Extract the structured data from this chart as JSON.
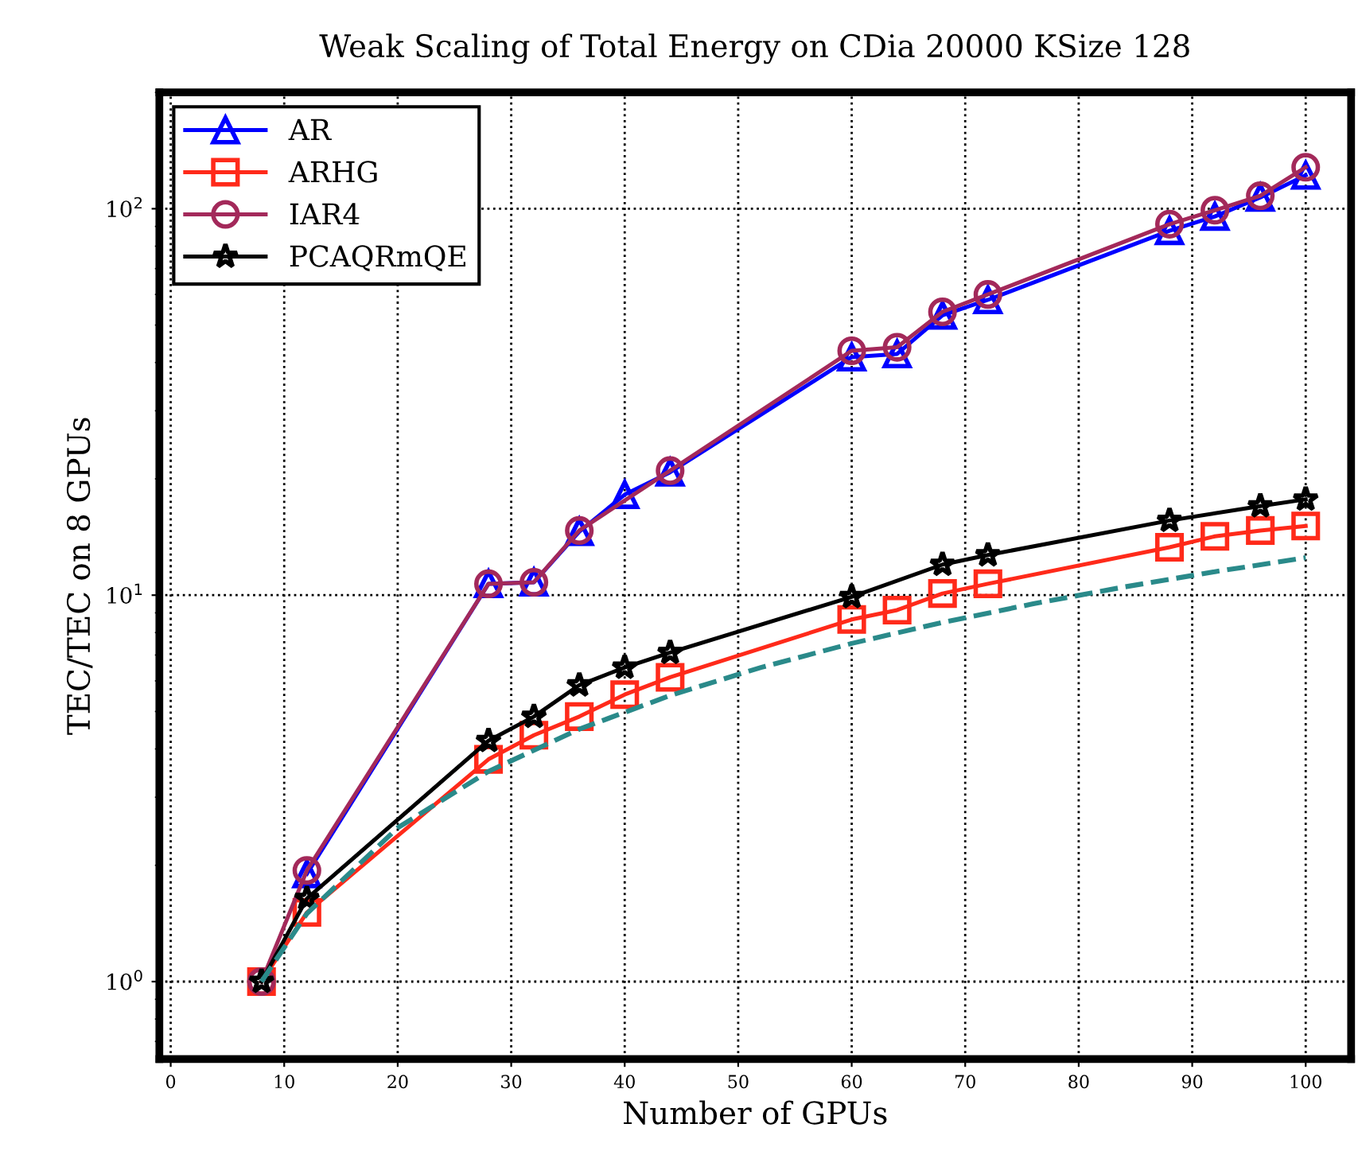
{
  "chart_data": {
    "type": "line",
    "title": "Weak Scaling of Total Energy on CDia 20000 KSize 128",
    "xlabel": "Number of GPUs",
    "ylabel": "TEC/TEC on 8 GPUs",
    "x": [
      8,
      12,
      28,
      32,
      36,
      40,
      44,
      60,
      64,
      68,
      72,
      88,
      92,
      96,
      100
    ],
    "series": [
      {
        "name": "AR",
        "color": "#0000ff",
        "marker": "triangle",
        "values": [
          null,
          1.9,
          10.7,
          10.8,
          14.6,
          18.2,
          20.8,
          41.3,
          42.1,
          53.0,
          58.1,
          87.7,
          95.5,
          107,
          122
        ]
      },
      {
        "name": "ARHG",
        "color": "#ff2a1a",
        "marker": "square",
        "values": [
          1.0,
          1.51,
          3.76,
          4.34,
          4.85,
          5.53,
          6.13,
          8.65,
          9.15,
          10.1,
          10.7,
          13.3,
          14.2,
          14.7,
          15.1
        ]
      },
      {
        "name": "IAR4",
        "color": "#a3295a",
        "marker": "circle",
        "x": [
          8,
          12,
          28,
          32,
          36,
          44,
          60,
          64,
          68,
          72,
          88,
          92,
          96,
          100
        ],
        "values": [
          1.0,
          1.94,
          10.7,
          10.8,
          14.7,
          21.0,
          42.9,
          43.8,
          54.1,
          60.0,
          91.2,
          99.1,
          108,
          128
        ]
      },
      {
        "name": "PCAQRmQE",
        "color": "#000000",
        "marker": "star",
        "values": [
          1.0,
          1.64,
          4.2,
          4.85,
          5.85,
          6.5,
          7.1,
          9.9,
          null,
          12.0,
          12.7,
          15.6,
          null,
          17.0,
          17.7
        ]
      },
      {
        "color": "#2a8a8a",
        "marker": "none",
        "line_style": "dashed",
        "x": [
          8,
          12,
          20,
          28,
          36,
          44,
          52,
          60,
          68,
          76,
          84,
          92,
          100
        ],
        "values": [
          1,
          1.5,
          2.5,
          3.5,
          4.5,
          5.5,
          6.5,
          7.5,
          8.5,
          9.5,
          10.5,
          11.5,
          12.5
        ]
      }
    ],
    "log": "y",
    "xlim": [
      -1,
      104
    ],
    "ylim": [
      0.63,
      200
    ],
    "xticks": [
      0,
      10,
      20,
      30,
      40,
      50,
      60,
      70,
      80,
      90,
      100
    ],
    "yticks": [
      {
        "value": 1,
        "label": "10$^{0}$"
      },
      {
        "value": 10,
        "label": "10$^{1}$"
      },
      {
        "value": 100,
        "label": "10$^{2}$"
      }
    ],
    "grid": true,
    "legend": "top left"
  }
}
